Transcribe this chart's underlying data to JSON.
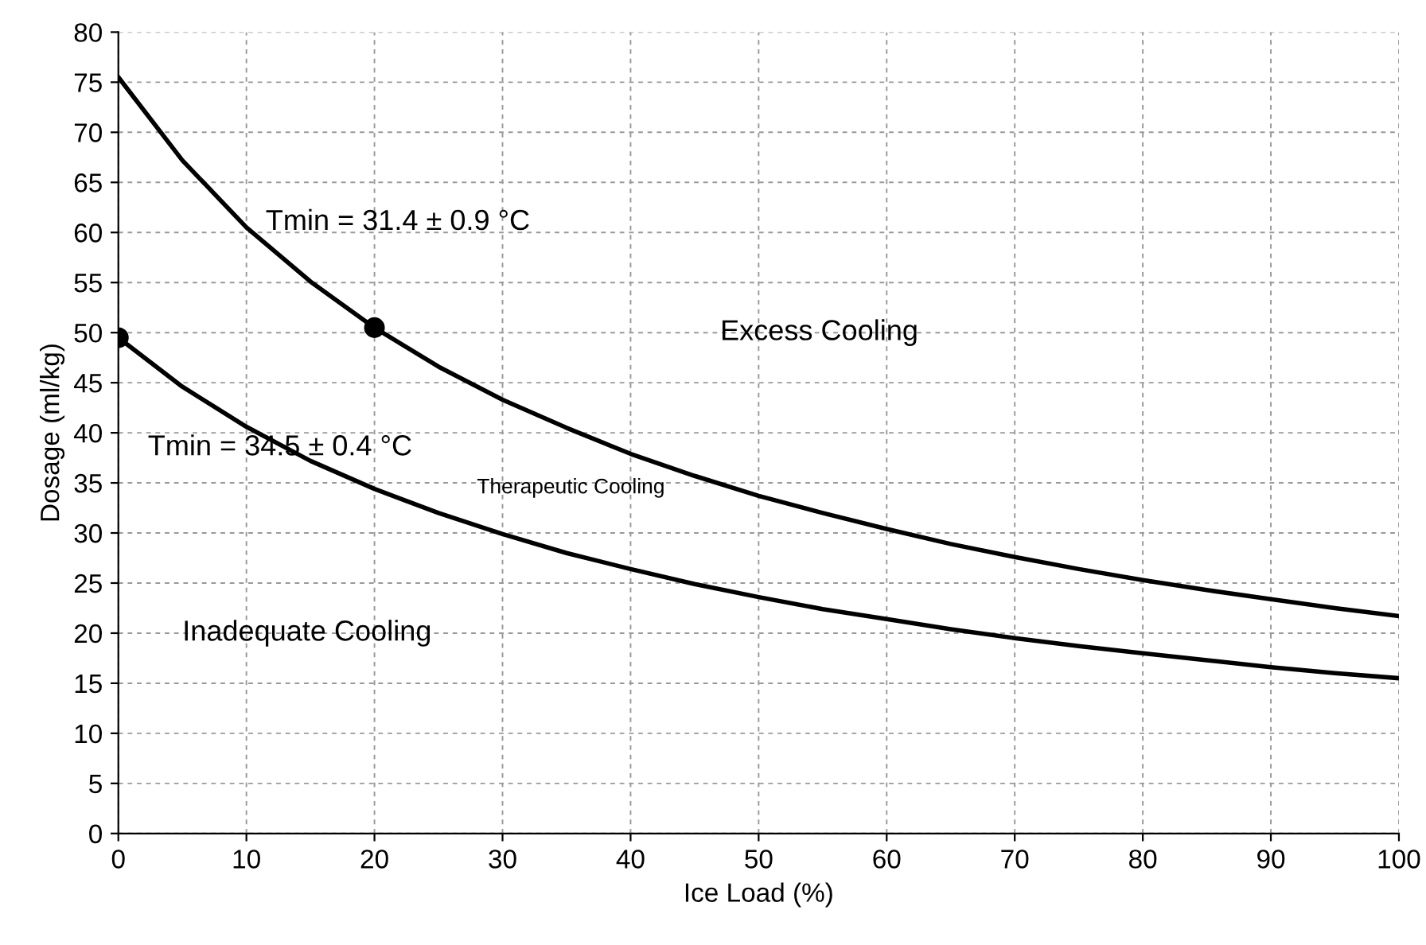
{
  "chart_data": {
    "type": "line",
    "xlabel": "Ice Load (%)",
    "ylabel": "Dosage (ml/kg)",
    "xlim": [
      0,
      100
    ],
    "ylim": [
      0,
      80
    ],
    "xticks": [
      0,
      10,
      20,
      30,
      40,
      50,
      60,
      70,
      80,
      90,
      100
    ],
    "yticks": [
      0,
      5,
      10,
      15,
      20,
      25,
      30,
      35,
      40,
      45,
      50,
      55,
      60,
      65,
      70,
      75,
      80
    ],
    "grid": true,
    "line_style": "solid",
    "marker": "none",
    "series": [
      {
        "color": "#000000",
        "x": [
          0,
          5,
          10,
          15,
          20,
          25,
          30,
          35,
          40,
          45,
          50,
          55,
          60,
          65,
          70,
          75,
          80,
          85,
          90,
          95,
          100
        ],
        "values": [
          75.5,
          67.2,
          60.5,
          55.1,
          50.5,
          46.6,
          43.3,
          40.5,
          37.9,
          35.7,
          33.7,
          32.0,
          30.4,
          28.9,
          27.6,
          26.4,
          25.3,
          24.3,
          23.4,
          22.5,
          21.7
        ]
      },
      {
        "color": "#000000",
        "x": [
          0,
          5,
          10,
          15,
          20,
          25,
          30,
          35,
          40,
          45,
          50,
          55,
          60,
          65,
          70,
          75,
          80,
          85,
          90,
          95,
          100
        ],
        "values": [
          49.5,
          44.6,
          40.6,
          37.2,
          34.4,
          32.0,
          29.9,
          28.0,
          26.4,
          24.9,
          23.6,
          22.4,
          21.4,
          20.4,
          19.5,
          18.7,
          18.0,
          17.3,
          16.6,
          16.0,
          15.5
        ]
      },
      {
        "type": "scatter",
        "color": "#000000",
        "marker": "circle",
        "x": [
          0,
          20
        ],
        "values": [
          49.5,
          50.5
        ]
      }
    ],
    "annotations": [
      "Tmin = 31.4 ± 0.9 °C",
      "Tmin = 34.5 ± 0.4 °C",
      "Excess Cooling",
      "Therapeutic Cooling",
      "Inadequate Cooling"
    ]
  }
}
